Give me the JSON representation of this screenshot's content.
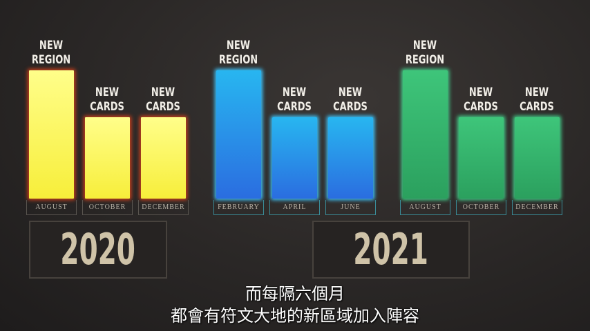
{
  "groups": [
    {
      "year": "2020",
      "color": "#f7ee3a",
      "bars": [
        {
          "caption": [
            "NEW",
            "REGION"
          ],
          "month": "AUGUST"
        },
        {
          "caption": [
            "NEW",
            "CARDS"
          ],
          "month": "OCTOBER"
        },
        {
          "caption": [
            "NEW",
            "CARDS"
          ],
          "month": "DECEMBER"
        }
      ]
    },
    {
      "year": "",
      "color": "#2a8ee8",
      "bars": [
        {
          "caption": [
            "NEW",
            "REGION"
          ],
          "month": "FEBRUARY"
        },
        {
          "caption": [
            "NEW",
            "CARDS"
          ],
          "month": "APRIL"
        },
        {
          "caption": [
            "NEW",
            "CARDS"
          ],
          "month": "JUNE"
        }
      ]
    },
    {
      "year": "2021",
      "color": "#3ec57a",
      "bars": [
        {
          "caption": [
            "NEW",
            "REGION"
          ],
          "month": "AUGUST"
        },
        {
          "caption": [
            "NEW",
            "CARDS"
          ],
          "month": "OCTOBER"
        },
        {
          "caption": [
            "NEW",
            "CARDS"
          ],
          "month": "DECEMBER"
        }
      ]
    }
  ],
  "subtitles": [
    "而每隔六個月",
    "都會有符文大地的新區域加入陣容"
  ]
}
